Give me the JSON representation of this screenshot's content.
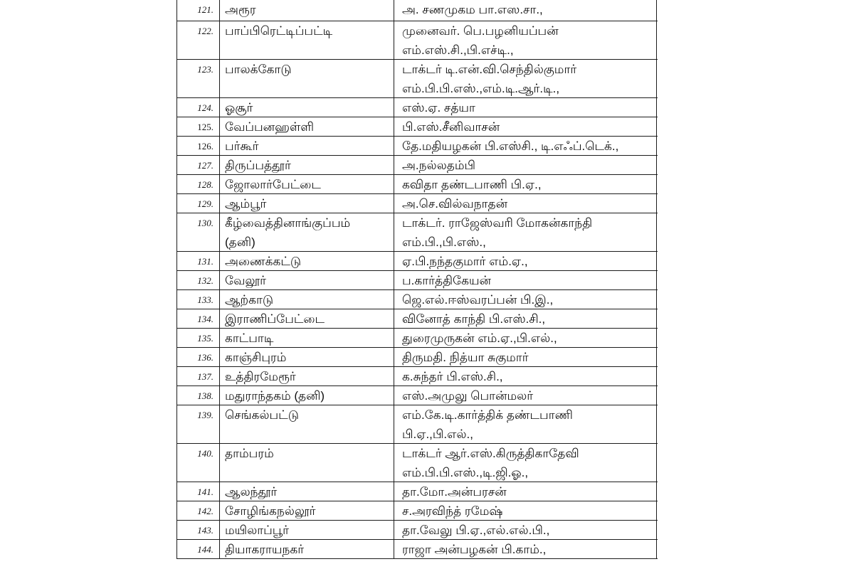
{
  "page": {
    "background": "#ffffff",
    "border_color": "#1c1c1c",
    "text_color": "#101010"
  },
  "table": {
    "rows": [
      {
        "no": "121.",
        "constituency": "அரூர",
        "candidate": "அ. சணமுகம பா.எஸ.சா.,"
      },
      {
        "no": "122.",
        "constituency": "பாப்பிரெட்டிப்பட்டி",
        "candidate": "முனைவர். பெ.பழனியப்பன்\nஎம்.எஸ்.சி.,பி.எச்டி.,"
      },
      {
        "no": "123.",
        "constituency": "பாலக்கோடு",
        "candidate": "டாக்டர் டி.என்.வி.செந்தில்குமார்\nஎம்.பி.பி.எஸ்.,எம்.டி.ஆர்.டி.,"
      },
      {
        "no": "124.",
        "constituency": "ஓசூர்",
        "candidate": "எஸ்.ஏ. சத்யா"
      },
      {
        "no": "125.",
        "constituency": "வேப்பனஹள்ளி",
        "candidate": "பி.எஸ்.சீனிவாசன்"
      },
      {
        "no": "126.",
        "constituency": "பர்கூர்",
        "candidate": "தே.மதியழகன் பி.எஸ்சி., டி.எஃப்.டெக்.,"
      },
      {
        "no": "127.",
        "constituency": "திருப்பத்தூர்",
        "candidate": "அ.நல்லதம்பி"
      },
      {
        "no": "128.",
        "constituency": "ஜோலார்பேட்டை",
        "candidate": "கவிதா தண்டபாணி பி.ஏ.,"
      },
      {
        "no": "129.",
        "constituency": "ஆம்பூர்",
        "candidate": "அ.செ.வில்வநாதன்"
      },
      {
        "no": "130.",
        "constituency": "கீழ்வைத்தினாங்குப்பம்\n(தனி)",
        "candidate": "டாக்டர். ராஜேஸ்வரி மோகன்காந்தி\nஎம்.பி.,பி.எஸ்.,"
      },
      {
        "no": "131.",
        "constituency": "அணைக்கட்டு",
        "candidate": "ஏ.பி.நந்தகுமார் எம்.ஏ.,"
      },
      {
        "no": "132.",
        "constituency": "வேலூர்",
        "candidate": "ப.கார்த்திகேயன்"
      },
      {
        "no": "133.",
        "constituency": "ஆற்காடு",
        "candidate": "ஜெ.எல்.ஈஸ்வரப்பன் பி.இ.,"
      },
      {
        "no": "134.",
        "constituency": "இராணிப்பேட்டை",
        "candidate": "வினோத் காந்தி பி.எஸ்.சி.,"
      },
      {
        "no": "135.",
        "constituency": "காட்பாடி",
        "candidate": "துரைமுருகன் எம்.ஏ.,பி.எல்.,"
      },
      {
        "no": "136.",
        "constituency": "காஞ்சிபுரம்",
        "candidate": "திருமதி. நித்யா சுகுமார்"
      },
      {
        "no": "137.",
        "constituency": "உத்திரமேரூர்",
        "candidate": "க.சுந்தர் பி.எஸ்.சி.,"
      },
      {
        "no": "138.",
        "constituency": "மதுராந்தகம் (தனி)",
        "candidate": "எஸ்.அமுலு பொன்மலர்"
      },
      {
        "no": "139.",
        "constituency": "செங்கல்பட்டு",
        "candidate": "எம்.கே.டி.கார்த்திக் தண்டபாணி\nபி.ஏ.,பி.எல்.,"
      },
      {
        "no": "140.",
        "constituency": "தாம்பரம்",
        "candidate": "டாக்டர் ஆர்.எஸ்.கிருத்திகாதேவி\nஎம்.பி.பி.எஸ்.,டி.ஜி.ஓ.,"
      },
      {
        "no": "141.",
        "constituency": "ஆலந்தூர்",
        "candidate": "தா.மோ.அன்பரசன்"
      },
      {
        "no": "142.",
        "constituency": "சோழிங்கநல்லூர்",
        "candidate": "ச.அரவிந்த் ரமேஷ்"
      },
      {
        "no": "143.",
        "constituency": "மயிலாப்பூர்",
        "candidate": "தா.வேலு பி.ஏ.,எல்.எல்.பி.,"
      },
      {
        "no": "144.",
        "constituency": "தியாகராயநகர்",
        "candidate": "ராஜா அன்பழகன் பி.காம்.,"
      }
    ]
  }
}
